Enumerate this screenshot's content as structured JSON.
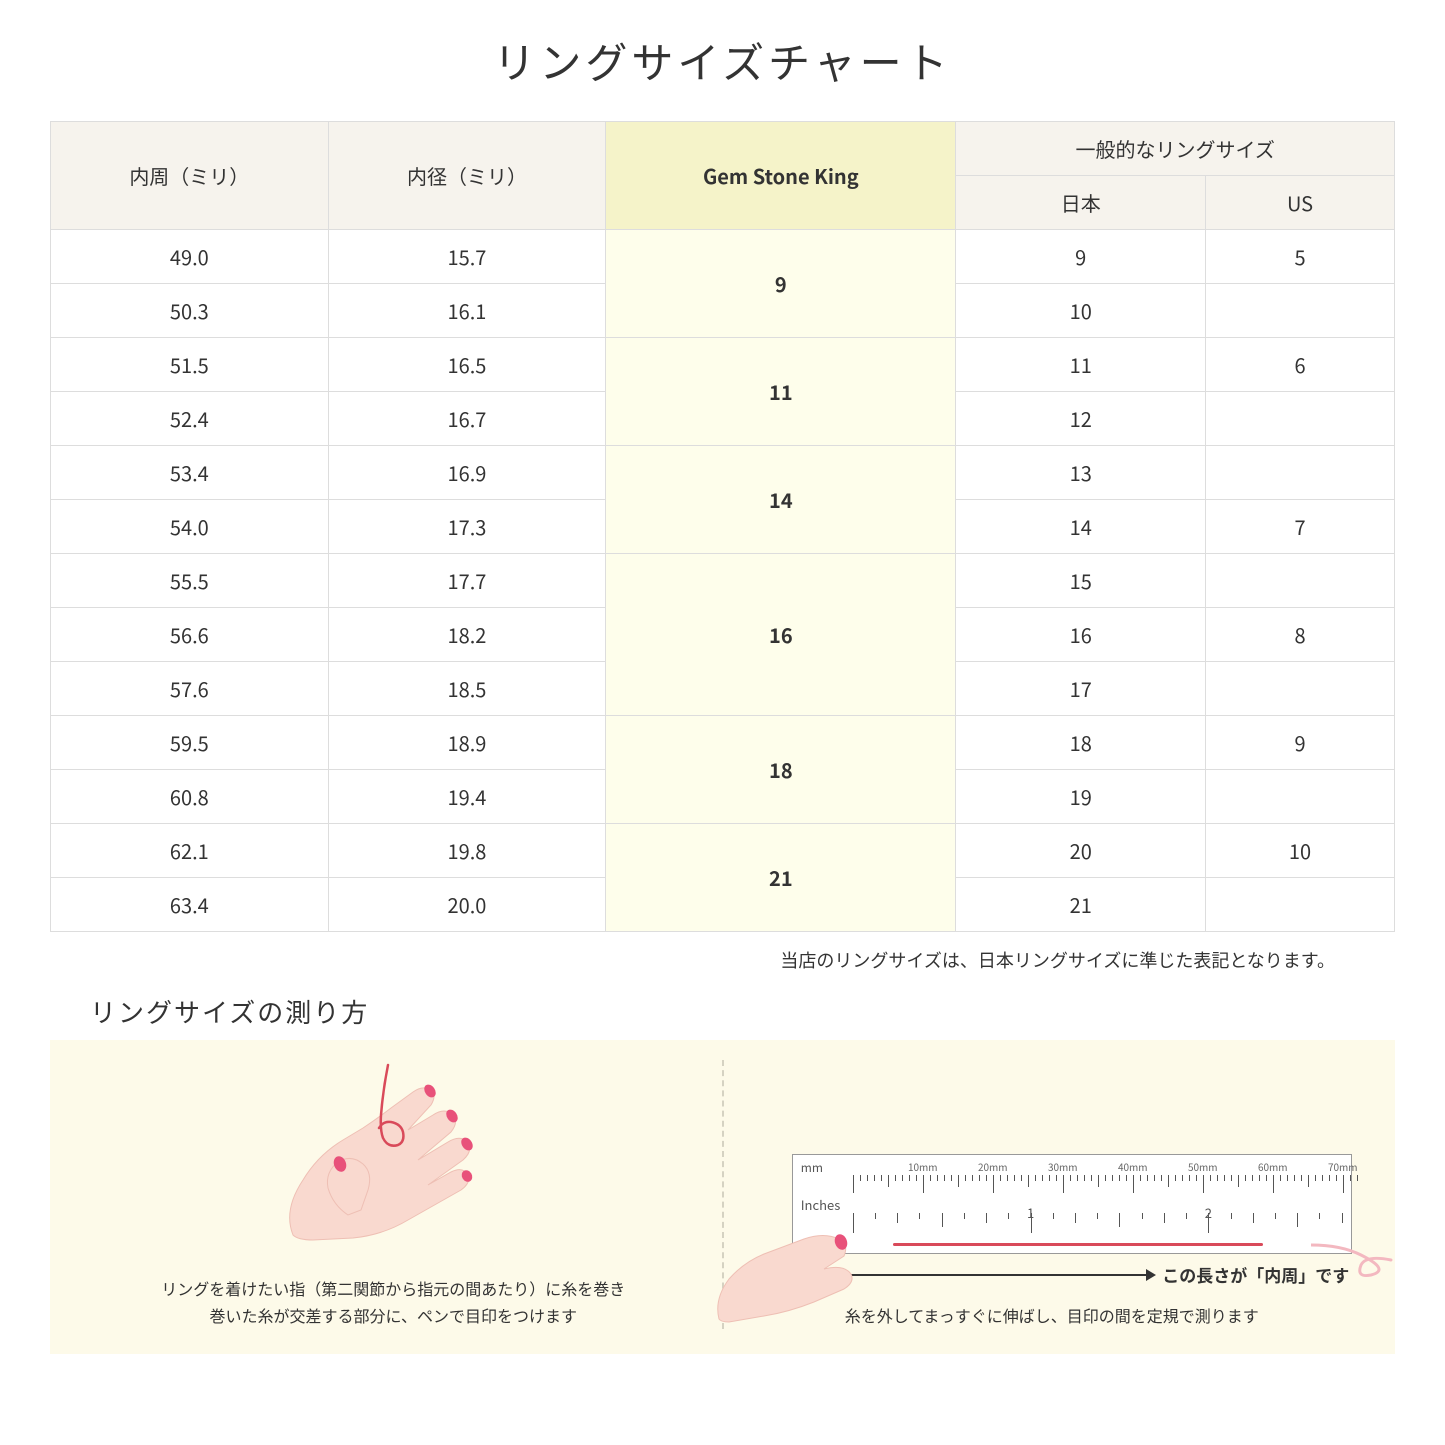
{
  "title": "リングサイズチャート",
  "headers": {
    "col1": "内周（ミリ）",
    "col2": "内径（ミリ）",
    "col3": "Gem Stone King",
    "group": "一般的なリングサイズ",
    "sub1": "日本",
    "sub2": "US"
  },
  "groups": [
    {
      "gsk": "9",
      "rows": [
        {
          "c": "49.0",
          "d": "15.7",
          "jp": "9",
          "us": "5"
        },
        {
          "c": "50.3",
          "d": "16.1",
          "jp": "10",
          "us": ""
        }
      ]
    },
    {
      "gsk": "11",
      "rows": [
        {
          "c": "51.5",
          "d": "16.5",
          "jp": "11",
          "us": "6"
        },
        {
          "c": "52.4",
          "d": "16.7",
          "jp": "12",
          "us": ""
        }
      ]
    },
    {
      "gsk": "14",
      "rows": [
        {
          "c": "53.4",
          "d": "16.9",
          "jp": "13",
          "us": ""
        },
        {
          "c": "54.0",
          "d": "17.3",
          "jp": "14",
          "us": "7"
        }
      ]
    },
    {
      "gsk": "16",
      "rows": [
        {
          "c": "55.5",
          "d": "17.7",
          "jp": "15",
          "us": ""
        },
        {
          "c": "56.6",
          "d": "18.2",
          "jp": "16",
          "us": "8"
        },
        {
          "c": "57.6",
          "d": "18.5",
          "jp": "17",
          "us": ""
        }
      ]
    },
    {
      "gsk": "18",
      "rows": [
        {
          "c": "59.5",
          "d": "18.9",
          "jp": "18",
          "us": "9"
        },
        {
          "c": "60.8",
          "d": "19.4",
          "jp": "19",
          "us": ""
        }
      ]
    },
    {
      "gsk": "21",
      "rows": [
        {
          "c": "62.1",
          "d": "19.8",
          "jp": "20",
          "us": "10"
        },
        {
          "c": "63.4",
          "d": "20.0",
          "jp": "21",
          "us": ""
        }
      ]
    }
  ],
  "note": "当店のリングサイズは、日本リングサイズに準じた表記となります。",
  "howto_title": "リングサイズの測り方",
  "howto_left_caption_l1": "リングを着けたい指（第二関節から指元の間あたり）に糸を巻き",
  "howto_left_caption_l2": "巻いた糸が交差する部分に、ペンで目印をつけます",
  "howto_right_measure": "この長さが「内周」です",
  "howto_right_caption": "糸を外してまっすぐに伸ばし、目印の間を定規で測ります",
  "ruler": {
    "mm_label": "mm",
    "in_label": "Inches",
    "mm_marks": [
      "10mm",
      "20mm",
      "30mm",
      "40mm",
      "50mm",
      "60mm",
      "70mm"
    ],
    "in_marks": [
      "1",
      "2"
    ]
  },
  "colors": {
    "header_bg": "#f6f3ed",
    "highlight_header": "#f5f3c9",
    "highlight_cell": "#fefeeb",
    "howto_bg": "#fdfae9",
    "skin": "#f9d9cf",
    "skin_shadow": "#eebfb4",
    "nail": "#e8517a",
    "thread": "#d94a5a"
  }
}
